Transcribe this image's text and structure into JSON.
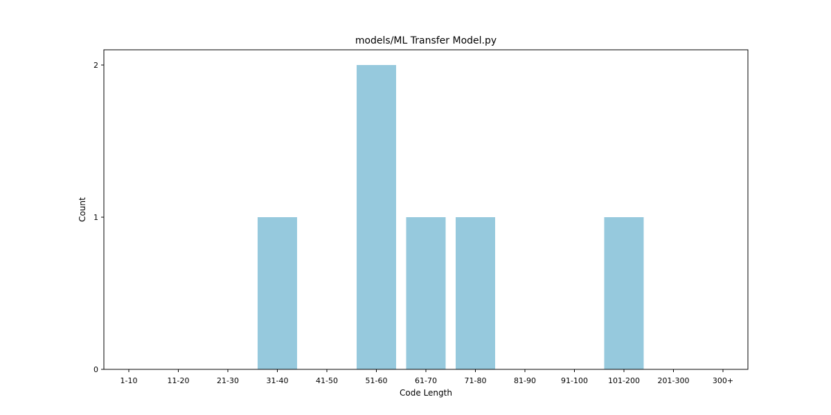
{
  "chart_data": {
    "type": "bar",
    "title": "models/ML Transfer Model.py",
    "xlabel": "Code Length",
    "ylabel": "Count",
    "categories": [
      "1-10",
      "11-20",
      "21-30",
      "31-40",
      "41-50",
      "51-60",
      "61-70",
      "71-80",
      "81-90",
      "91-100",
      "101-200",
      "201-300",
      "300+"
    ],
    "values": [
      0,
      0,
      0,
      1,
      0,
      2,
      1,
      1,
      0,
      0,
      1,
      0,
      0
    ],
    "yticks": [
      0,
      1,
      2
    ],
    "ylim": [
      0,
      2.1
    ],
    "grid": false,
    "bar_color": "#96c9dd"
  }
}
